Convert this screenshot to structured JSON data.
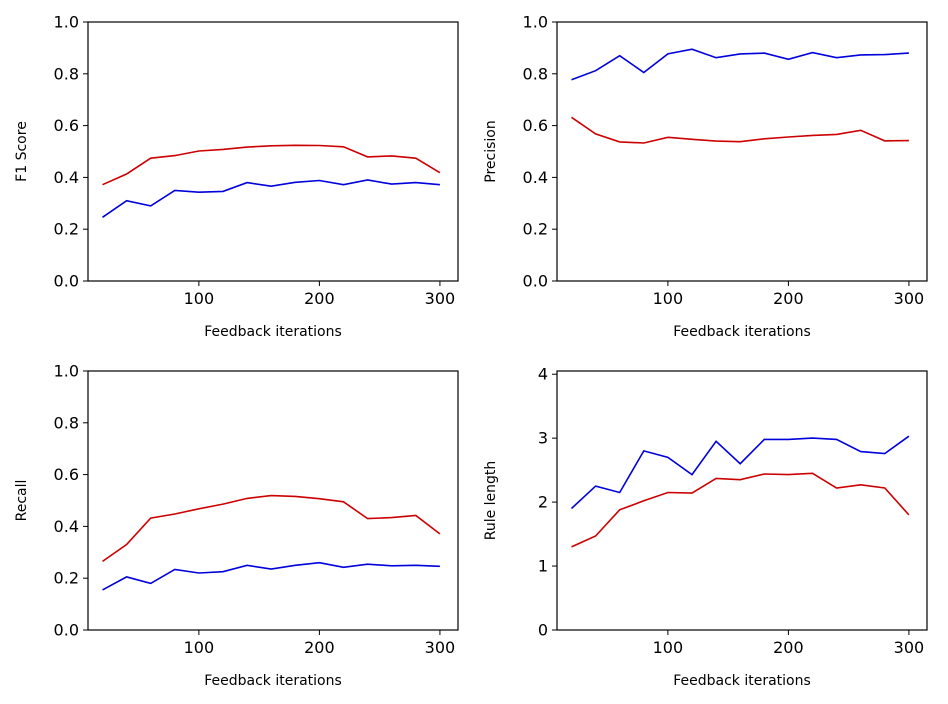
{
  "chart_data": [
    {
      "type": "line",
      "title": "",
      "xlabel": "Feedback iterations",
      "ylabel": "F1 Score",
      "xlim": [
        8,
        315
      ],
      "ylim": [
        0,
        1.0
      ],
      "xticks": [
        100,
        200,
        300
      ],
      "xtick_labels": [
        "100",
        "200",
        "300"
      ],
      "yticks": [
        0,
        0.2,
        0.4,
        0.6,
        0.8,
        1.0
      ],
      "ytick_labels": [
        "0.0",
        "0.2",
        "0.4",
        "0.6",
        "0.8",
        "1.0"
      ],
      "x": [
        20,
        40,
        60,
        80,
        100,
        120,
        140,
        160,
        180,
        200,
        220,
        240,
        260,
        280,
        300
      ],
      "series": [
        {
          "name": "red",
          "color": "#cc0000",
          "values": [
            0.372,
            0.413,
            0.474,
            0.484,
            0.502,
            0.508,
            0.517,
            0.522,
            0.524,
            0.523,
            0.518,
            0.479,
            0.483,
            0.474,
            0.418
          ]
        },
        {
          "name": "blue",
          "color": "#0000dd",
          "values": [
            0.246,
            0.31,
            0.29,
            0.35,
            0.343,
            0.346,
            0.38,
            0.366,
            0.381,
            0.388,
            0.372,
            0.39,
            0.374,
            0.38,
            0.372
          ]
        }
      ]
    },
    {
      "type": "line",
      "title": "",
      "xlabel": "Feedback iterations",
      "ylabel": "Precision",
      "xlim": [
        8,
        315
      ],
      "ylim": [
        0,
        1.0
      ],
      "xticks": [
        100,
        200,
        300
      ],
      "xtick_labels": [
        "100",
        "200",
        "300"
      ],
      "yticks": [
        0,
        0.2,
        0.4,
        0.6,
        0.8,
        1.0
      ],
      "ytick_labels": [
        "0.0",
        "0.2",
        "0.4",
        "0.6",
        "0.8",
        "1.0"
      ],
      "x": [
        20,
        40,
        60,
        80,
        100,
        120,
        140,
        160,
        180,
        200,
        220,
        240,
        260,
        280,
        300
      ],
      "series": [
        {
          "name": "blue",
          "color": "#0000dd",
          "values": [
            0.777,
            0.812,
            0.87,
            0.805,
            0.877,
            0.895,
            0.862,
            0.877,
            0.88,
            0.856,
            0.882,
            0.862,
            0.873,
            0.874,
            0.88
          ]
        },
        {
          "name": "red",
          "color": "#cc0000",
          "values": [
            0.632,
            0.568,
            0.537,
            0.533,
            0.555,
            0.547,
            0.54,
            0.538,
            0.549,
            0.556,
            0.562,
            0.566,
            0.582,
            0.541,
            0.542
          ]
        }
      ]
    },
    {
      "type": "line",
      "title": "",
      "xlabel": "Feedback iterations",
      "ylabel": "Recall",
      "xlim": [
        8,
        315
      ],
      "ylim": [
        0,
        1.0
      ],
      "xticks": [
        100,
        200,
        300
      ],
      "xtick_labels": [
        "100",
        "200",
        "300"
      ],
      "yticks": [
        0,
        0.2,
        0.4,
        0.6,
        0.8,
        1.0
      ],
      "ytick_labels": [
        "0.0",
        "0.2",
        "0.4",
        "0.6",
        "0.8",
        "1.0"
      ],
      "x": [
        20,
        40,
        60,
        80,
        100,
        120,
        140,
        160,
        180,
        200,
        220,
        240,
        260,
        280,
        300
      ],
      "series": [
        {
          "name": "red",
          "color": "#cc0000",
          "values": [
            0.265,
            0.33,
            0.432,
            0.448,
            0.468,
            0.486,
            0.508,
            0.519,
            0.516,
            0.507,
            0.495,
            0.43,
            0.434,
            0.442,
            0.371
          ]
        },
        {
          "name": "blue",
          "color": "#0000dd",
          "values": [
            0.155,
            0.205,
            0.18,
            0.234,
            0.22,
            0.225,
            0.25,
            0.235,
            0.25,
            0.26,
            0.242,
            0.254,
            0.248,
            0.25,
            0.246
          ]
        }
      ]
    },
    {
      "type": "line",
      "title": "",
      "xlabel": "Feedback iterations",
      "ylabel": "Rule length",
      "xlim": [
        8,
        315
      ],
      "ylim": [
        0,
        4.05
      ],
      "xticks": [
        100,
        200,
        300
      ],
      "xtick_labels": [
        "100",
        "200",
        "300"
      ],
      "yticks": [
        0,
        1,
        2,
        3,
        4
      ],
      "ytick_labels": [
        "0",
        "1",
        "2",
        "3",
        "4"
      ],
      "x": [
        20,
        40,
        60,
        80,
        100,
        120,
        140,
        160,
        180,
        200,
        220,
        240,
        260,
        280,
        300
      ],
      "series": [
        {
          "name": "blue",
          "color": "#0000dd",
          "values": [
            1.9,
            2.25,
            2.15,
            2.8,
            2.7,
            2.43,
            2.95,
            2.6,
            2.98,
            2.98,
            3.0,
            2.98,
            2.79,
            2.76,
            3.03
          ]
        },
        {
          "name": "red",
          "color": "#cc0000",
          "values": [
            1.3,
            1.47,
            1.88,
            2.02,
            2.15,
            2.14,
            2.37,
            2.35,
            2.44,
            2.43,
            2.45,
            2.22,
            2.27,
            2.22,
            1.8
          ]
        }
      ]
    }
  ]
}
